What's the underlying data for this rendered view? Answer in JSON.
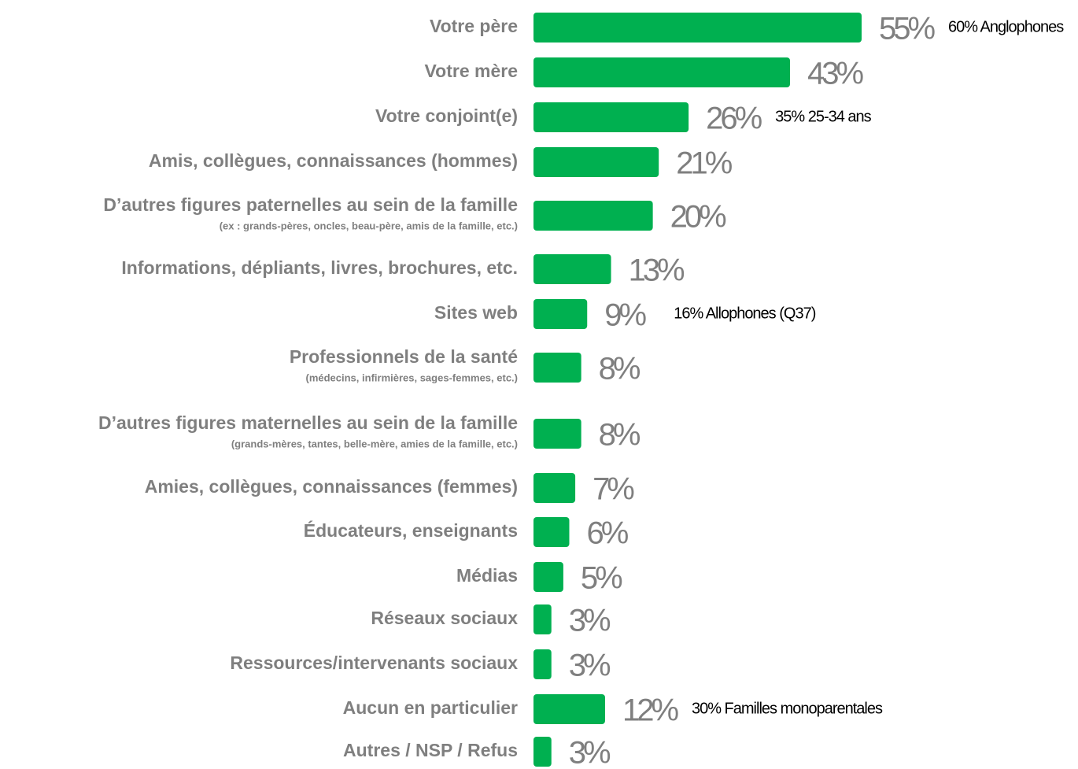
{
  "chart_data": {
    "type": "bar",
    "orientation": "horizontal",
    "color": "#00b050",
    "categories": [
      "Votre père",
      "Votre mère",
      "Votre conjoint(e)",
      "Amis, collègues, connaissances (hommes)",
      "D’autres figures paternelles au sein de la famille",
      "Informations, dépliants, livres, brochures, etc.",
      "Sites web",
      "Professionnels de la santé",
      "D’autres figures maternelles au sein de la famille",
      "Amies, collègues, connaissances (femmes)",
      "Éducateurs, enseignants",
      "Médias",
      "Réseaux sociaux",
      "Ressources/intervenants sociaux",
      "Aucun en particulier",
      "Autres / NSP / Refus"
    ],
    "sublabels": [
      null,
      null,
      null,
      null,
      "(ex : grands-pères, oncles, beau-père, amis de la famille, etc.)",
      null,
      null,
      "(médecins, infirmières, sages-femmes, etc.)",
      "(grands-mères, tantes, belle-mère, amies de la famille, etc.)",
      null,
      null,
      null,
      null,
      null,
      null,
      null
    ],
    "values": [
      55,
      43,
      26,
      21,
      20,
      13,
      9,
      8,
      8,
      7,
      6,
      5,
      3,
      3,
      12,
      3
    ],
    "value_labels": [
      "55%",
      "43%",
      "26%",
      "21%",
      "20%",
      "13%",
      "9%",
      "8%",
      "8%",
      "7%",
      "6%",
      "5%",
      "3%",
      "3%",
      "12%",
      "3%"
    ],
    "annotations": [
      {
        "category": "Votre père",
        "text": "60% Anglophones"
      },
      {
        "category": "Votre conjoint(e)",
        "text": "35% 25-34 ans"
      },
      {
        "category": "Sites web",
        "text": "16% Allophones (Q37)"
      },
      {
        "category": "Aucun en particulier",
        "text": "30% Familles monoparentales"
      }
    ]
  }
}
